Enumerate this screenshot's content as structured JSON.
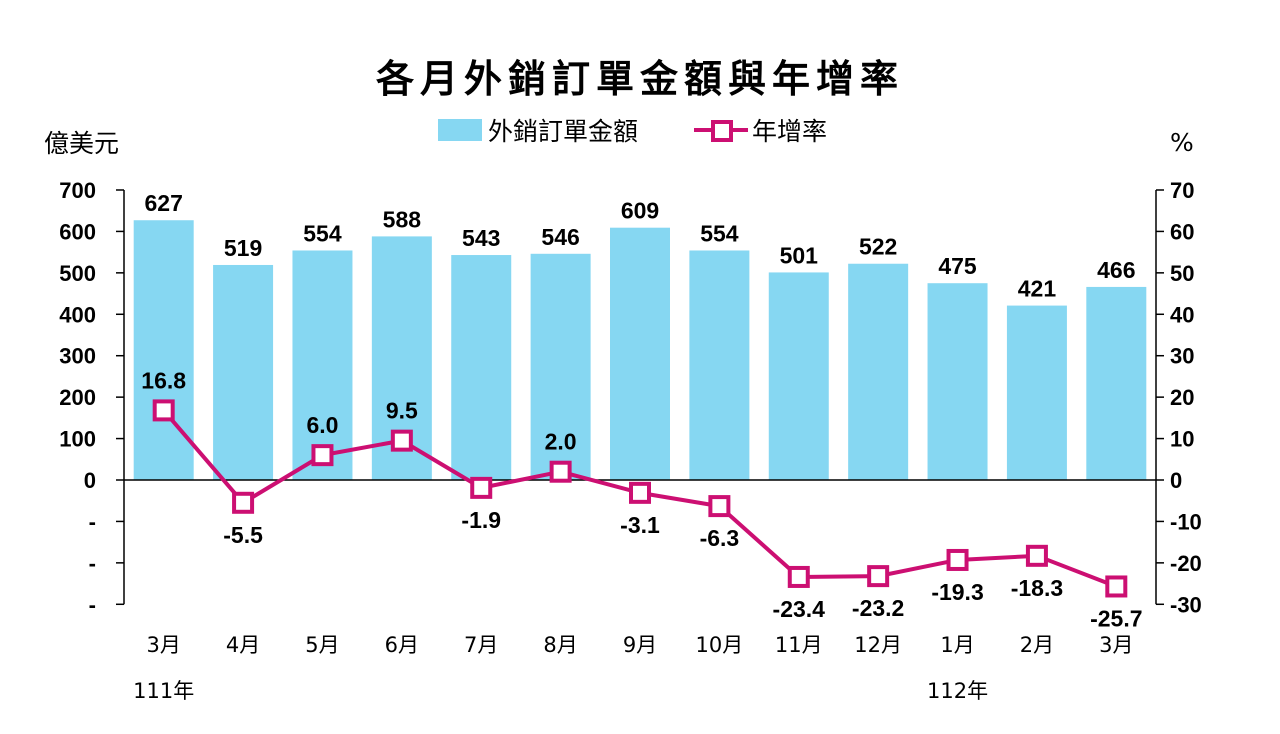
{
  "chart_data": {
    "type": "bar",
    "title": "各月外銷訂單金額與年增率",
    "ylabel_left": "億美元",
    "ylabel_right": "%",
    "categories": [
      "3月",
      "4月",
      "5月",
      "6月",
      "7月",
      "8月",
      "9月",
      "10月",
      "11月",
      "12月",
      "1月",
      "2月",
      "3月"
    ],
    "year_labels": [
      {
        "index": 0,
        "label": "111年"
      },
      {
        "index": 10,
        "label": "112年"
      }
    ],
    "series": [
      {
        "name": "外銷訂單金額",
        "type": "bar",
        "axis": "left",
        "color": "#86d7f2",
        "values": [
          627,
          519,
          554,
          588,
          543,
          546,
          609,
          554,
          501,
          522,
          475,
          421,
          466
        ]
      },
      {
        "name": "年增率",
        "type": "line",
        "axis": "right",
        "color": "#cc0f72",
        "values": [
          16.8,
          -5.5,
          6.0,
          9.5,
          -1.9,
          2.0,
          -3.1,
          -6.3,
          -23.4,
          -23.2,
          -19.3,
          -18.3,
          -25.7
        ],
        "labels": [
          "16.8",
          "-5.5",
          "6.0",
          "9.5",
          "-1.9",
          "2.0",
          "-3.1",
          "-6.3",
          "-23.4",
          "-23.2",
          "-19.3",
          "-18.3",
          "-25.7"
        ]
      }
    ],
    "left_axis": {
      "range": [
        -300,
        700
      ],
      "ticks": [
        0,
        100,
        200,
        300,
        400,
        500,
        600,
        700
      ],
      "tick_labels": [
        "0",
        "100",
        "200",
        "300",
        "400",
        "500",
        "600",
        "700"
      ],
      "minor_ticks": [
        -100,
        -200,
        -300
      ],
      "minor_tick_labels": [
        "-",
        "-",
        "-"
      ]
    },
    "right_axis": {
      "range": [
        -30,
        70
      ],
      "ticks": [
        -30,
        -20,
        -10,
        0,
        10,
        20,
        30,
        40,
        50,
        60,
        70
      ],
      "tick_labels": [
        "-30",
        "-20",
        "-10",
        "0",
        "10",
        "20",
        "30",
        "40",
        "50",
        "60",
        "70"
      ]
    },
    "grid": false,
    "legend": "top-center"
  }
}
